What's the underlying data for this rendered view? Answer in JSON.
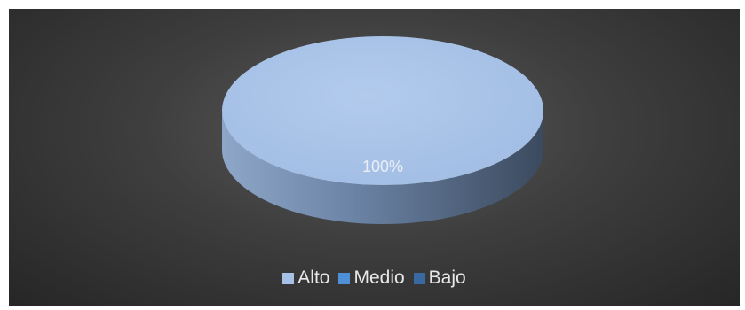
{
  "chart_data": {
    "type": "pie",
    "style": "3d",
    "categories": [
      "Alto",
      "Medio",
      "Bajo"
    ],
    "values": [
      100,
      0,
      0
    ],
    "data_labels": [
      "100%"
    ],
    "colors": [
      "#a6c0e6",
      "#4f8fd6",
      "#3a68a0"
    ],
    "side_color_dark": "#3d4f66",
    "side_color_light": "#7f98bb",
    "background": "#3a3a3a",
    "title": "",
    "legend_position": "bottom"
  }
}
